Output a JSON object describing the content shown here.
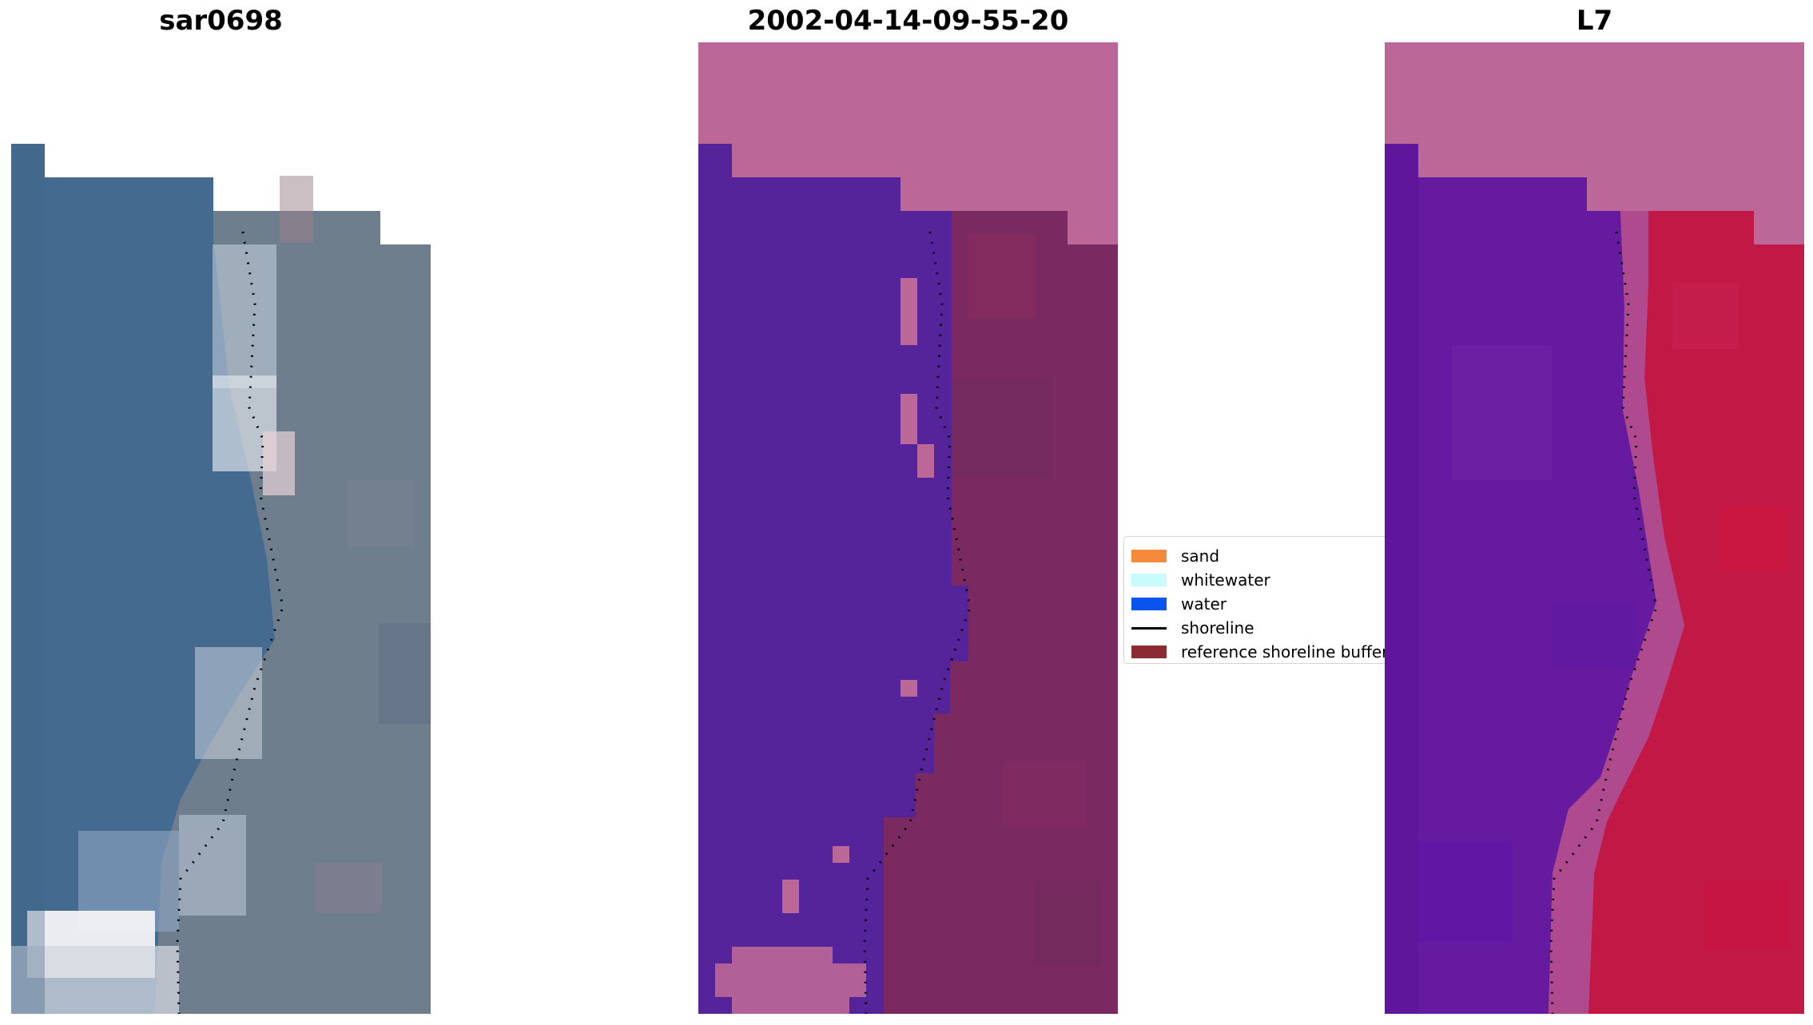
{
  "panels": [
    {
      "title": "sar0698"
    },
    {
      "title": "2002-04-14-09-55-20"
    },
    {
      "title": "L7"
    }
  ],
  "legend": {
    "items": [
      {
        "label": "sand",
        "color": "#f58a3c",
        "kind": "patch"
      },
      {
        "label": "whitewater",
        "color": "#c8fbfb",
        "kind": "patch"
      },
      {
        "label": "water",
        "color": "#0a55ee",
        "kind": "patch"
      },
      {
        "label": "shoreline",
        "color": "#000000",
        "kind": "line"
      },
      {
        "label": "reference shoreline buffer",
        "color": "#8c2a32",
        "kind": "patch"
      }
    ]
  },
  "colors": {
    "rgb_water": "#446a90",
    "rgb_land": "#6f7e8c",
    "class_water": "#55239a",
    "class_buffer": "#7a2a60",
    "class_nodata": "#bb6798",
    "fc_water": "#661aa0",
    "fc_land": "#c21846",
    "fc_nodata": "#bb6798"
  }
}
